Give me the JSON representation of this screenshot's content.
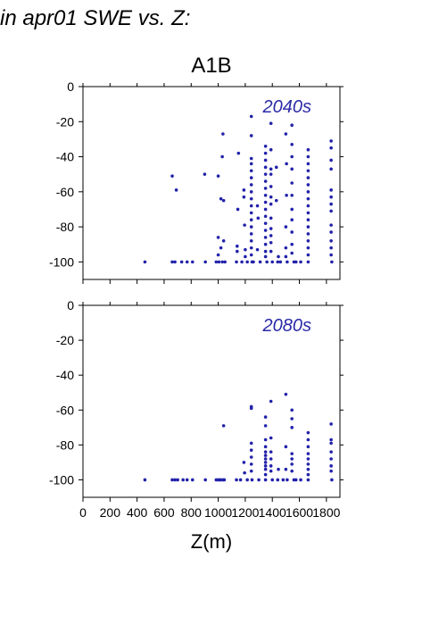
{
  "figure": {
    "header": "in apr01 SWE vs. Z:",
    "scenario": "A1B",
    "xlabel": "Z(m)"
  },
  "colors": {
    "points": "#2222aa",
    "panel_label": "#2a2aa8",
    "axes": "#000000"
  },
  "chart_data": [
    {
      "type": "scatter",
      "annotation": "2040s",
      "xlim": [
        0,
        1900
      ],
      "ylim": [
        -110,
        0
      ],
      "xticks": [
        0,
        200,
        400,
        600,
        800,
        1000,
        1200,
        1400,
        1600,
        1800
      ],
      "yticks": [
        0,
        -20,
        -40,
        -60,
        -80,
        -100
      ],
      "points": [
        [
          458,
          -100
        ],
        [
          660,
          -100
        ],
        [
          680,
          -100
        ],
        [
          730,
          -100
        ],
        [
          770,
          -100
        ],
        [
          810,
          -100
        ],
        [
          905,
          -100
        ],
        [
          985,
          -100
        ],
        [
          1005,
          -100
        ],
        [
          1030,
          -100
        ],
        [
          1050,
          -100
        ],
        [
          1135,
          -100
        ],
        [
          1175,
          -100
        ],
        [
          1215,
          -100
        ],
        [
          1250,
          -100
        ],
        [
          1260,
          -100
        ],
        [
          1310,
          -100
        ],
        [
          1360,
          -100
        ],
        [
          1400,
          -100
        ],
        [
          1440,
          -100
        ],
        [
          1460,
          -100
        ],
        [
          1510,
          -100
        ],
        [
          1560,
          -100
        ],
        [
          1575,
          -100
        ],
        [
          1610,
          -100
        ],
        [
          1665,
          -100
        ],
        [
          1840,
          -100
        ],
        [
          660,
          -51
        ],
        [
          690,
          -59
        ],
        [
          900,
          -50
        ],
        [
          1000,
          -51
        ],
        [
          1020,
          -64
        ],
        [
          1040,
          -65
        ],
        [
          1035,
          -27
        ],
        [
          1030,
          -40
        ],
        [
          1000,
          -86
        ],
        [
          1040,
          -88
        ],
        [
          1000,
          -96
        ],
        [
          1020,
          -92
        ],
        [
          1150,
          -38
        ],
        [
          1145,
          -70
        ],
        [
          1140,
          -91
        ],
        [
          1140,
          -94
        ],
        [
          1190,
          -59
        ],
        [
          1190,
          -63
        ],
        [
          1195,
          -79
        ],
        [
          1200,
          -93
        ],
        [
          1200,
          -97
        ],
        [
          1245,
          -17
        ],
        [
          1245,
          -28
        ],
        [
          1245,
          -41
        ],
        [
          1245,
          -44
        ],
        [
          1245,
          -48
        ],
        [
          1245,
          -52
        ],
        [
          1245,
          -56
        ],
        [
          1245,
          -60
        ],
        [
          1245,
          -64
        ],
        [
          1245,
          -68
        ],
        [
          1245,
          -72
        ],
        [
          1245,
          -76
        ],
        [
          1245,
          -80
        ],
        [
          1245,
          -84
        ],
        [
          1245,
          -88
        ],
        [
          1245,
          -92
        ],
        [
          1245,
          -96
        ],
        [
          1290,
          -68
        ],
        [
          1290,
          -93
        ],
        [
          1295,
          -75
        ],
        [
          1350,
          -34
        ],
        [
          1350,
          -38
        ],
        [
          1350,
          -42
        ],
        [
          1350,
          -46
        ],
        [
          1350,
          -50
        ],
        [
          1350,
          -54
        ],
        [
          1350,
          -58
        ],
        [
          1350,
          -62
        ],
        [
          1350,
          -66
        ],
        [
          1350,
          -70
        ],
        [
          1350,
          -74
        ],
        [
          1350,
          -78
        ],
        [
          1350,
          -82
        ],
        [
          1350,
          -86
        ],
        [
          1350,
          -90
        ],
        [
          1350,
          -94
        ],
        [
          1350,
          -97
        ],
        [
          1390,
          -21
        ],
        [
          1390,
          -36
        ],
        [
          1390,
          -47
        ],
        [
          1390,
          -50
        ],
        [
          1390,
          -57
        ],
        [
          1390,
          -63
        ],
        [
          1390,
          -67
        ],
        [
          1390,
          -75
        ],
        [
          1390,
          -81
        ],
        [
          1390,
          -85
        ],
        [
          1390,
          -89
        ],
        [
          1390,
          -94
        ],
        [
          1430,
          -46
        ],
        [
          1430,
          -65
        ],
        [
          1445,
          -97
        ],
        [
          1500,
          -27
        ],
        [
          1505,
          -44
        ],
        [
          1505,
          -62
        ],
        [
          1500,
          -80
        ],
        [
          1500,
          -92
        ],
        [
          1500,
          -97
        ],
        [
          1545,
          -22
        ],
        [
          1545,
          -33
        ],
        [
          1545,
          -40
        ],
        [
          1545,
          -47
        ],
        [
          1545,
          -55
        ],
        [
          1545,
          -62
        ],
        [
          1545,
          -70
        ],
        [
          1545,
          -76
        ],
        [
          1545,
          -83
        ],
        [
          1545,
          -90
        ],
        [
          1545,
          -95
        ],
        [
          1665,
          -36
        ],
        [
          1665,
          -40
        ],
        [
          1665,
          -44
        ],
        [
          1665,
          -48
        ],
        [
          1665,
          -52
        ],
        [
          1665,
          -56
        ],
        [
          1665,
          -60
        ],
        [
          1665,
          -64
        ],
        [
          1665,
          -68
        ],
        [
          1665,
          -72
        ],
        [
          1665,
          -76
        ],
        [
          1665,
          -80
        ],
        [
          1665,
          -84
        ],
        [
          1665,
          -88
        ],
        [
          1665,
          -92
        ],
        [
          1665,
          -96
        ],
        [
          1835,
          -31
        ],
        [
          1835,
          -35
        ],
        [
          1835,
          -42
        ],
        [
          1835,
          -47
        ],
        [
          1835,
          -59
        ],
        [
          1835,
          -63
        ],
        [
          1835,
          -67
        ],
        [
          1835,
          -71
        ],
        [
          1835,
          -79
        ],
        [
          1835,
          -83
        ],
        [
          1835,
          -88
        ],
        [
          1835,
          -92
        ],
        [
          1835,
          -96
        ]
      ]
    },
    {
      "type": "scatter",
      "annotation": "2080s",
      "xlim": [
        0,
        1900
      ],
      "ylim": [
        -110,
        0
      ],
      "xticks": [
        0,
        200,
        400,
        600,
        800,
        1000,
        1200,
        1400,
        1600,
        1800
      ],
      "yticks": [
        0,
        -20,
        -40,
        -60,
        -80,
        -100
      ],
      "points": [
        [
          458,
          -100
        ],
        [
          660,
          -100
        ],
        [
          680,
          -100
        ],
        [
          700,
          -100
        ],
        [
          740,
          -100
        ],
        [
          770,
          -100
        ],
        [
          810,
          -100
        ],
        [
          905,
          -100
        ],
        [
          985,
          -100
        ],
        [
          1000,
          -100
        ],
        [
          1010,
          -100
        ],
        [
          1020,
          -100
        ],
        [
          1035,
          -100
        ],
        [
          1045,
          -100
        ],
        [
          1135,
          -100
        ],
        [
          1165,
          -100
        ],
        [
          1215,
          -100
        ],
        [
          1250,
          -100
        ],
        [
          1300,
          -100
        ],
        [
          1350,
          -100
        ],
        [
          1400,
          -100
        ],
        [
          1440,
          -100
        ],
        [
          1480,
          -100
        ],
        [
          1510,
          -100
        ],
        [
          1560,
          -100
        ],
        [
          1575,
          -100
        ],
        [
          1610,
          -100
        ],
        [
          1665,
          -100
        ],
        [
          1840,
          -100
        ],
        [
          1040,
          -69
        ],
        [
          1190,
          -90
        ],
        [
          1195,
          -96
        ],
        [
          1245,
          -58
        ],
        [
          1245,
          -59
        ],
        [
          1245,
          -79
        ],
        [
          1245,
          -83
        ],
        [
          1245,
          -87
        ],
        [
          1245,
          -91
        ],
        [
          1245,
          -95
        ],
        [
          1350,
          -64
        ],
        [
          1350,
          -69
        ],
        [
          1350,
          -77
        ],
        [
          1350,
          -81
        ],
        [
          1350,
          -84
        ],
        [
          1350,
          -86
        ],
        [
          1350,
          -88
        ],
        [
          1350,
          -90
        ],
        [
          1350,
          -92
        ],
        [
          1350,
          -94
        ],
        [
          1350,
          -97
        ],
        [
          1390,
          -55
        ],
        [
          1390,
          -76
        ],
        [
          1390,
          -84
        ],
        [
          1390,
          -88
        ],
        [
          1390,
          -92
        ],
        [
          1390,
          -95
        ],
        [
          1445,
          -94
        ],
        [
          1500,
          -51
        ],
        [
          1500,
          -81
        ],
        [
          1500,
          -94
        ],
        [
          1545,
          -60
        ],
        [
          1545,
          -65
        ],
        [
          1545,
          -70
        ],
        [
          1545,
          -85
        ],
        [
          1545,
          -88
        ],
        [
          1545,
          -91
        ],
        [
          1545,
          -95
        ],
        [
          1665,
          -73
        ],
        [
          1665,
          -77
        ],
        [
          1665,
          -81
        ],
        [
          1665,
          -85
        ],
        [
          1665,
          -88
        ],
        [
          1665,
          -91
        ],
        [
          1665,
          -94
        ],
        [
          1665,
          -97
        ],
        [
          1835,
          -68
        ],
        [
          1835,
          -77
        ],
        [
          1835,
          -79
        ],
        [
          1835,
          -84
        ],
        [
          1835,
          -88
        ],
        [
          1835,
          -92
        ],
        [
          1835,
          -95
        ]
      ]
    }
  ]
}
